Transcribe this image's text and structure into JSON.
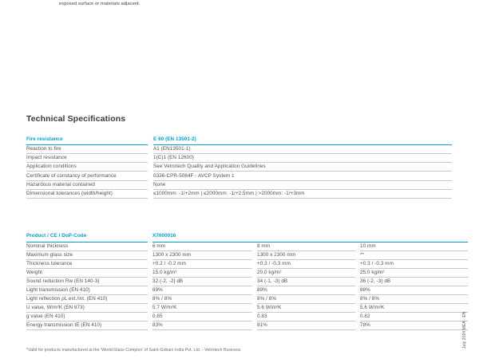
{
  "colors": {
    "accent": "#00a0dd",
    "text": "#4f4f4f",
    "line": "#c9c9c9"
  },
  "page": {
    "top_text": "exposed surface or materials adjacent.",
    "heading": "Technical Specifications",
    "footnote": "*Valid for products manufactured at the 'World Glass Complex' of Saint-Gobain India Pvt. Ltd. - Vetrotech Business",
    "side_note": "July 2024 MEA - EN"
  },
  "fire_table": {
    "header": {
      "label": "Fire resistance",
      "value": "E 60 (EN 13501-2)"
    },
    "rows": [
      {
        "label": "Reaction to fire",
        "value": "A1 (EN13501-1)"
      },
      {
        "label": "Impact resistance",
        "value": "1(C)1 (EN 12600)"
      },
      {
        "label": "Application conditions",
        "value": "See Vetrotech Quality and Application Guidelines"
      },
      {
        "label": "Certificate of constancy of performance",
        "value": "0336-CPR-5064F - AVCP System 1"
      },
      {
        "label": "Hazardous material contained",
        "value": "None"
      },
      {
        "label": "Dimensional tolerances (width/height)",
        "value": "≤1000mm: -1/+2mm | ≤2000mm: -1/+2.5mm | >2000mm: -1/+3mm"
      }
    ]
  },
  "product_table": {
    "header": {
      "label": "Product / CE / DoP-Code",
      "value": "X7000016"
    },
    "rows": [
      {
        "label": "Nominal thickness",
        "v1": "6 mm",
        "v2": "8 mm",
        "v3": "10 mm"
      },
      {
        "label": "Maximum glass size",
        "v1": "1300 x 2300 mm",
        "v2": "1300 x 2300 mm",
        "v3": "**"
      },
      {
        "label": "Thickness tolerance",
        "v1": "+0.2 / -0.2 mm",
        "v2": "+0.3 / -0.3 mm",
        "v3": "+0.3 / -0.3 mm"
      },
      {
        "label": "Weight",
        "v1": "15.0 kg/m²",
        "v2": "20.0 kg/m²",
        "v3": "25.0 kg/m²"
      },
      {
        "label": "Sound reduction Rw (EN 140-3)",
        "v1": "32 (-2, -2) dB",
        "v2": "34 (-1, -3) dB",
        "v3": "36 (-2, -3) dB"
      },
      {
        "label": "Light transmission (EN 410)",
        "v1": "89%",
        "v2": "89%",
        "v3": "88%"
      },
      {
        "label": "Light reflection ρL ext./int. (EN 410)",
        "v1": "8% / 8%",
        "v2": "8% / 8%",
        "v3": "8% / 8%"
      },
      {
        "label": "U value, W/m²K (EN 673)",
        "v1": "5.7 W/m²K",
        "v2": "5.6 W/m²K",
        "v3": "5.6 W/m²K"
      },
      {
        "label": "g value (EN 410)",
        "v1": "0.85",
        "v2": "0.83",
        "v3": "0.82"
      },
      {
        "label": "Energy transmission tE (EN 410)",
        "v1": "83%",
        "v2": "81%",
        "v3": "78%"
      }
    ]
  }
}
